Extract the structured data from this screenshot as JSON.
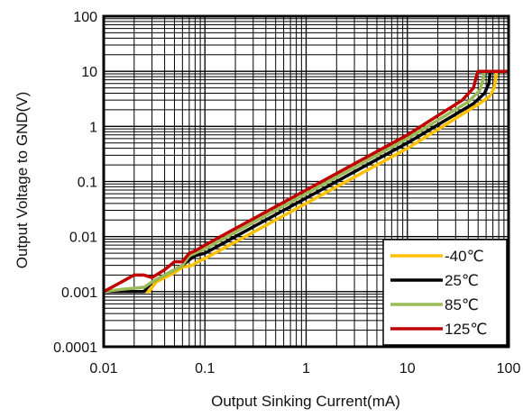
{
  "chart_data": {
    "type": "line",
    "title": "",
    "xlabel": "Output Sinking Current(mA)",
    "ylabel": "Output Voltage to GND(V)",
    "x_scale": "log",
    "y_scale": "log",
    "xlim": [
      0.01,
      100
    ],
    "ylim": [
      0.0001,
      100
    ],
    "x_ticks": [
      "0.01",
      "0.1",
      "1",
      "10",
      "100"
    ],
    "y_ticks": [
      "0.0001",
      "0.001",
      "0.01",
      "0.1",
      "1",
      "10",
      "100"
    ],
    "grid": true,
    "legend_position": "bottom-right",
    "series": [
      {
        "name": "-40℃",
        "color": "#FFC000",
        "points": [
          [
            0.01,
            0.001
          ],
          [
            0.02,
            0.001
          ],
          [
            0.028,
            0.001
          ],
          [
            0.033,
            0.0015
          ],
          [
            0.045,
            0.002
          ],
          [
            0.05,
            0.0022
          ],
          [
            0.06,
            0.0028
          ],
          [
            0.075,
            0.003
          ],
          [
            0.085,
            0.0035
          ],
          [
            0.1,
            0.004
          ],
          [
            1,
            0.04
          ],
          [
            10,
            0.4
          ],
          [
            50,
            2.5
          ],
          [
            65,
            3.5
          ],
          [
            72,
            5
          ],
          [
            75,
            8
          ],
          [
            76,
            10
          ],
          [
            100,
            10
          ]
        ]
      },
      {
        "name": "25℃",
        "color": "#000000",
        "points": [
          [
            0.01,
            0.001
          ],
          [
            0.02,
            0.001
          ],
          [
            0.025,
            0.001
          ],
          [
            0.03,
            0.0015
          ],
          [
            0.04,
            0.002
          ],
          [
            0.05,
            0.0025
          ],
          [
            0.06,
            0.003
          ],
          [
            0.07,
            0.0038
          ],
          [
            0.08,
            0.0045
          ],
          [
            0.1,
            0.005
          ],
          [
            1,
            0.05
          ],
          [
            10,
            0.5
          ],
          [
            45,
            2.6
          ],
          [
            58,
            4
          ],
          [
            64,
            6
          ],
          [
            66,
            10
          ],
          [
            100,
            10
          ]
        ]
      },
      {
        "name": "85℃",
        "color": "#9BBB59",
        "points": [
          [
            0.01,
            0.001
          ],
          [
            0.015,
            0.0011
          ],
          [
            0.025,
            0.0012
          ],
          [
            0.03,
            0.0015
          ],
          [
            0.04,
            0.002
          ],
          [
            0.05,
            0.0025
          ],
          [
            0.06,
            0.003
          ],
          [
            0.07,
            0.0045
          ],
          [
            0.08,
            0.005
          ],
          [
            0.1,
            0.006
          ],
          [
            1,
            0.06
          ],
          [
            10,
            0.6
          ],
          [
            40,
            2.8
          ],
          [
            52,
            4.5
          ],
          [
            56,
            7
          ],
          [
            58,
            10
          ],
          [
            100,
            10
          ]
        ]
      },
      {
        "name": "125℃",
        "color": "#C00000",
        "points": [
          [
            0.01,
            0.001
          ],
          [
            0.015,
            0.0015
          ],
          [
            0.02,
            0.002
          ],
          [
            0.025,
            0.002
          ],
          [
            0.03,
            0.0018
          ],
          [
            0.04,
            0.0025
          ],
          [
            0.05,
            0.0035
          ],
          [
            0.06,
            0.0035
          ],
          [
            0.07,
            0.005
          ],
          [
            0.08,
            0.0055
          ],
          [
            0.1,
            0.007
          ],
          [
            1,
            0.07
          ],
          [
            10,
            0.7
          ],
          [
            35,
            3
          ],
          [
            45,
            5
          ],
          [
            48,
            8
          ],
          [
            50,
            10
          ],
          [
            100,
            10
          ]
        ]
      }
    ]
  }
}
